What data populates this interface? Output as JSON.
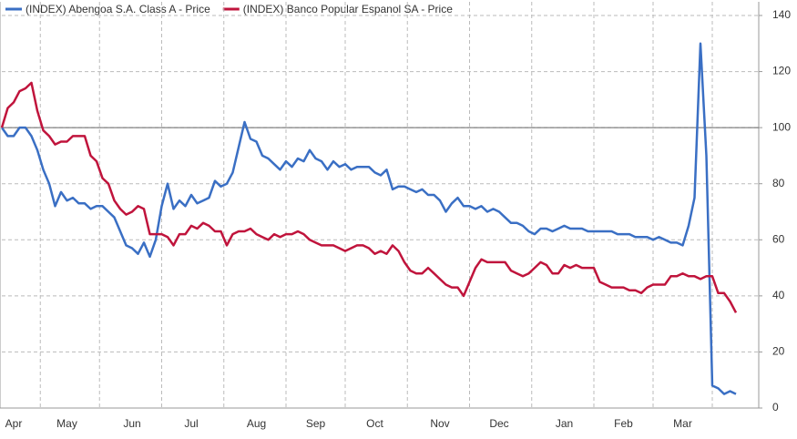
{
  "chart_data": {
    "type": "line",
    "categories": [
      null,
      null,
      "Apr",
      null,
      null,
      null,
      null,
      null,
      null,
      null,
      null,
      "May",
      null,
      null,
      null,
      null,
      null,
      null,
      null,
      null,
      null,
      null,
      "Jun",
      null,
      null,
      null,
      null,
      null,
      null,
      null,
      null,
      null,
      "Jul",
      null,
      null,
      null,
      null,
      null,
      null,
      null,
      null,
      null,
      null,
      "Aug",
      null,
      null,
      null,
      null,
      null,
      null,
      null,
      null,
      null,
      "Sep",
      null,
      null,
      null,
      null,
      null,
      null,
      null,
      null,
      null,
      "Oct",
      null,
      null,
      null,
      null,
      null,
      null,
      null,
      null,
      null,
      null,
      "Nov",
      null,
      null,
      null,
      null,
      null,
      null,
      null,
      null,
      null,
      "Dec",
      null,
      null,
      null,
      null,
      null,
      null,
      null,
      null,
      null,
      null,
      "Jan",
      null,
      null,
      null,
      null,
      null,
      null,
      null,
      null,
      null,
      "Feb",
      null,
      null,
      null,
      null,
      null,
      null,
      null,
      null,
      null,
      "Mar",
      null,
      null,
      null,
      null,
      null,
      null,
      null,
      null,
      null
    ],
    "series": [
      {
        "name": "(INDEX) Abengoa S.A. Class A - Price",
        "color": "#3a6fc4",
        "values": [
          100,
          97,
          97,
          100,
          100,
          97,
          92,
          85,
          80,
          72,
          77,
          74,
          75,
          73,
          73,
          71,
          72,
          72,
          70,
          68,
          63,
          58,
          57,
          55,
          59,
          54,
          60,
          72,
          80,
          71,
          74,
          72,
          76,
          73,
          74,
          75,
          81,
          79,
          80,
          84,
          93,
          102,
          96,
          95,
          90,
          89,
          87,
          85,
          88,
          86,
          89,
          88,
          92,
          89,
          88,
          85,
          88,
          86,
          87,
          85,
          86,
          86,
          86,
          84,
          83,
          85,
          78,
          79,
          79,
          78,
          77,
          78,
          76,
          76,
          74,
          70,
          73,
          75,
          72,
          72,
          71,
          72,
          70,
          71,
          70,
          68,
          66,
          66,
          65,
          63,
          62,
          64,
          64,
          63,
          64,
          65,
          64,
          64,
          64,
          63,
          63,
          63,
          63,
          63,
          62,
          62,
          62,
          61,
          61,
          61,
          60,
          61,
          60,
          59,
          59,
          58,
          65,
          75,
          130,
          90,
          8,
          7,
          5,
          6,
          5
        ]
      },
      {
        "name": "(INDEX) Banco Popular Espanol SA - Price",
        "color": "#c0143c",
        "values": [
          100,
          107,
          109,
          113,
          114,
          116,
          106,
          99,
          97,
          94,
          95,
          95,
          97,
          97,
          97,
          90,
          88,
          82,
          80,
          74,
          71,
          69,
          70,
          72,
          71,
          62,
          62,
          62,
          61,
          58,
          62,
          62,
          65,
          64,
          66,
          65,
          63,
          63,
          58,
          62,
          63,
          63,
          64,
          62,
          61,
          60,
          62,
          61,
          62,
          62,
          63,
          62,
          60,
          59,
          58,
          58,
          58,
          57,
          56,
          57,
          58,
          58,
          57,
          55,
          56,
          55,
          58,
          56,
          52,
          49,
          48,
          48,
          50,
          48,
          46,
          44,
          43,
          43,
          40,
          45,
          50,
          53,
          52,
          52,
          52,
          52,
          49,
          48,
          47,
          48,
          50,
          52,
          51,
          48,
          48,
          51,
          50,
          51,
          50,
          50,
          50,
          45,
          44,
          43,
          43,
          43,
          42,
          42,
          41,
          43,
          44,
          44,
          44,
          47,
          47,
          48,
          47,
          47,
          46,
          47,
          47,
          41,
          41,
          38,
          34
        ]
      }
    ],
    "ylim": [
      0,
      140
    ],
    "yticks": [
      0,
      20,
      40,
      60,
      80,
      100,
      120,
      140
    ],
    "reference_line": 100,
    "grid": true,
    "legend": "top-left",
    "y_axis_side": "right"
  }
}
